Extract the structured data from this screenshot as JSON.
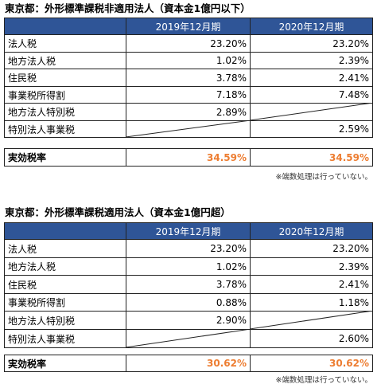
{
  "tables": [
    {
      "title": "東京都：外形標準課税非適用法人（資本金1億円以下）",
      "columns": [
        "2019年12月期",
        "2020年12月期"
      ],
      "rows": [
        [
          "法人税",
          "23.20%",
          "23.20%"
        ],
        [
          "地方法人税",
          "1.02%",
          "2.39%"
        ],
        [
          "住民税",
          "3.78%",
          "2.41%"
        ],
        [
          "事業税所得割",
          "7.18%",
          "7.48%"
        ],
        [
          "地方法人特別税",
          "2.89%",
          null
        ],
        [
          "特別法人事業税",
          null,
          "2.59%"
        ]
      ],
      "total": [
        "実効税率",
        "34.59%",
        "34.59%"
      ],
      "note": "※端数処理は行っていない。"
    },
    {
      "title": "東京都：外形標準課税適用法人（資本金1億円超）",
      "columns": [
        "2019年12月期",
        "2020年12月期"
      ],
      "rows": [
        [
          "法人税",
          "23.20%",
          "23.20%"
        ],
        [
          "地方法人税",
          "1.02%",
          "2.39%"
        ],
        [
          "住民税",
          "3.78%",
          "2.41%"
        ],
        [
          "事業税所得割",
          "0.88%",
          "1.18%"
        ],
        [
          "地方法人特別税",
          "2.90%",
          null
        ],
        [
          "特別法人事業税",
          null,
          "2.60%"
        ]
      ],
      "total": [
        "実効税率",
        "30.62%",
        "30.62%"
      ],
      "note": "※端数処理は行っていない。"
    }
  ]
}
